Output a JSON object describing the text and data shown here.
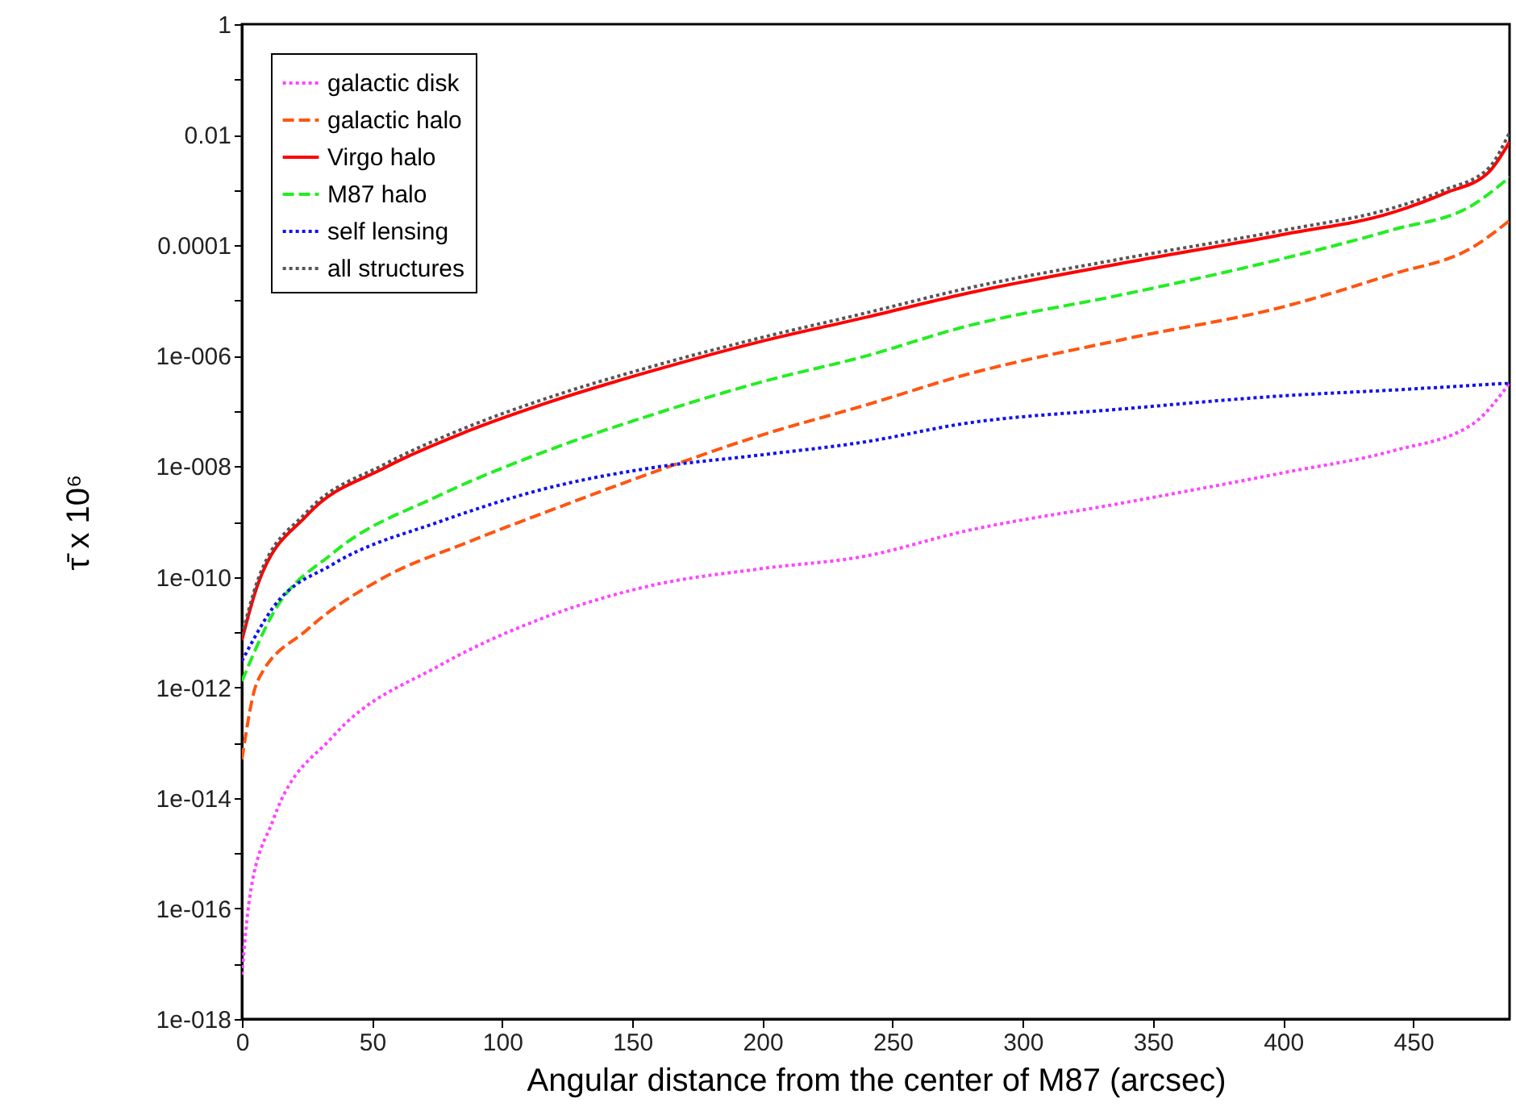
{
  "chart_data": {
    "type": "line",
    "xlabel": "Angular distance from the center of M87 (arcsec)",
    "ylabel": "τ̄ x 10⁶",
    "log": "y",
    "grid": false,
    "legend": "top left",
    "marker": "none",
    "xlim": [
      0,
      487
    ],
    "xticks": [
      0,
      50,
      100,
      150,
      200,
      250,
      300,
      350,
      400,
      450
    ],
    "ylim": [
      1e-18,
      1
    ],
    "yticks": [
      1,
      {
        "value": 0.1,
        "label": null
      },
      0.01,
      {
        "value": 0.001,
        "label": null
      },
      0.0001,
      {
        "value": 1e-05,
        "label": null
      },
      {
        "value": 1e-06,
        "label": "1e-006"
      },
      {
        "value": 1e-07,
        "label": null
      },
      {
        "value": 1e-08,
        "label": "1e-008"
      },
      {
        "value": 1e-09,
        "label": null
      },
      {
        "value": 1e-10,
        "label": "1e-010"
      },
      {
        "value": 1e-11,
        "label": null
      },
      {
        "value": 1e-12,
        "label": "1e-012"
      },
      {
        "value": 1e-13,
        "label": null
      },
      {
        "value": 1e-14,
        "label": "1e-014"
      },
      {
        "value": 1e-15,
        "label": null
      },
      {
        "value": 1e-16,
        "label": "1e-016"
      },
      {
        "value": 1e-17,
        "label": null
      },
      {
        "value": 1e-18,
        "label": "1e-018"
      }
    ],
    "series": [
      {
        "name": "galactic disk",
        "color": "#ff44ff",
        "line_style": "dotted",
        "x": [
          0,
          3,
          12,
          35,
          76,
          117,
          158,
          199,
          240,
          277,
          339,
          401,
          442,
          473,
          487
        ],
        "values": [
          6.3e-18,
          1.6e-16,
          4e-15,
          1.3e-13,
          2.5e-12,
          1.9e-11,
          7.1e-11,
          1.4e-10,
          2.4e-10,
          6.6e-10,
          2.2e-09,
          7.8e-09,
          1.9e-08,
          5.9e-08,
          3.2e-07
        ]
      },
      {
        "name": "galactic halo",
        "color": "#ff5511",
        "line_style": "dashed",
        "x": [
          0,
          6,
          25,
          55,
          86,
          117,
          158,
          199,
          240,
          277,
          339,
          401,
          442,
          473,
          487
        ],
        "values": [
          5e-14,
          1.3e-12,
          1.1e-11,
          1e-10,
          4.1e-10,
          1.5e-09,
          7.8e-09,
          3.6e-08,
          1.3e-07,
          4.4e-07,
          2e-06,
          7.9e-06,
          3e-05,
          9.3e-05,
          0.00028
        ]
      },
      {
        "name": "Virgo halo",
        "color": "#ff0000",
        "line_style": "solid",
        "x": [
          0,
          6,
          25,
          55,
          86,
          117,
          158,
          199,
          240,
          277,
          339,
          401,
          442,
          462,
          479,
          487
        ],
        "values": [
          7.2e-12,
          7.1e-11,
          1.3e-09,
          9.5e-09,
          4.2e-08,
          1.4e-07,
          5.4e-07,
          1.8e-06,
          5e-06,
          1.3e-05,
          4.8e-05,
          0.00016,
          0.00039,
          0.00087,
          0.0021,
          0.0074
        ]
      },
      {
        "name": "M87 halo",
        "color": "#22ee22",
        "line_style": "dashed",
        "x": [
          0,
          12,
          35,
          76,
          117,
          158,
          199,
          240,
          277,
          339,
          401,
          442,
          473,
          487
        ],
        "values": [
          1.3e-12,
          2.2e-11,
          2.7e-10,
          3e-09,
          1.9e-08,
          8.7e-08,
          3.3e-07,
          1e-06,
          3.3e-06,
          1.3e-05,
          5.9e-05,
          0.00019,
          0.00054,
          0.0017
        ]
      },
      {
        "name": "self lensing",
        "color": "#1111ee",
        "line_style": "dotted",
        "x": [
          0,
          12,
          35,
          76,
          117,
          158,
          199,
          240,
          277,
          339,
          401,
          442,
          487
        ],
        "values": [
          3e-12,
          2.8e-11,
          1.7e-10,
          1e-09,
          4e-09,
          9.5e-09,
          1.6e-08,
          2.8e-08,
          5.9e-08,
          1.1e-07,
          1.9e-07,
          2.4e-07,
          3.2e-07
        ]
      },
      {
        "name": "all structures",
        "color": "#555555",
        "line_style": "dotted",
        "x": [
          0,
          6,
          25,
          55,
          86,
          117,
          158,
          199,
          240,
          277,
          339,
          401,
          442,
          462,
          479,
          487
        ],
        "values": [
          8.7e-12,
          8.5e-11,
          1.5e-09,
          1.1e-08,
          5e-08,
          1.7e-07,
          6.5e-07,
          2.1e-06,
          6e-06,
          1.6e-05,
          5.8e-05,
          0.00019,
          0.00047,
          0.001,
          0.0025,
          0.011
        ]
      }
    ]
  }
}
